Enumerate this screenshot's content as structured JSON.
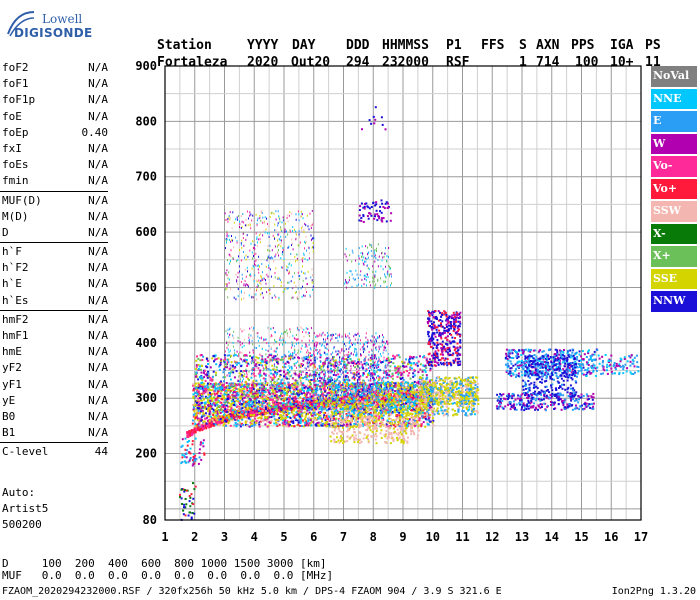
{
  "logo": {
    "line1": "Lowell",
    "line2": "DIGISONDE"
  },
  "header": {
    "labels": [
      "Station",
      "YYYY",
      "DAY",
      "DDD",
      "HHMMSS",
      "P1",
      "FFS",
      "S",
      "AXN",
      "PPS",
      "IGA",
      "PS"
    ],
    "values": [
      "Fortaleza",
      "2020",
      "Out20",
      "294",
      "232000",
      "RSF",
      "",
      "1",
      "714",
      "100",
      "10+",
      "11"
    ]
  },
  "params": [
    [
      {
        "k": "foF2",
        "v": "N/A"
      },
      {
        "k": "foF1",
        "v": "N/A"
      },
      {
        "k": "foF1p",
        "v": "N/A"
      },
      {
        "k": "foE",
        "v": "N/A"
      },
      {
        "k": "foEp",
        "v": "0.40"
      },
      {
        "k": "fxI",
        "v": "N/A"
      },
      {
        "k": "foEs",
        "v": "N/A"
      },
      {
        "k": "fmin",
        "v": "N/A"
      }
    ],
    [
      {
        "k": "MUF(D)",
        "v": "N/A"
      },
      {
        "k": "M(D)",
        "v": "N/A"
      },
      {
        "k": "D",
        "v": "N/A"
      }
    ],
    [
      {
        "k": "h`F",
        "v": "N/A"
      },
      {
        "k": "h`F2",
        "v": "N/A"
      },
      {
        "k": "h`E",
        "v": "N/A"
      },
      {
        "k": "h`Es",
        "v": "N/A"
      }
    ],
    [
      {
        "k": "hmF2",
        "v": "N/A"
      },
      {
        "k": "hmF1",
        "v": "N/A"
      },
      {
        "k": "hmE",
        "v": "N/A"
      },
      {
        "k": "yF2",
        "v": "N/A"
      },
      {
        "k": "yF1",
        "v": "N/A"
      },
      {
        "k": "yE",
        "v": "N/A"
      },
      {
        "k": "B0",
        "v": "N/A"
      },
      {
        "k": "B1",
        "v": "N/A"
      }
    ],
    [
      {
        "k": "C-level",
        "v": "44"
      }
    ]
  ],
  "autoscaling": [
    "Auto:",
    "Artist5",
    "500200"
  ],
  "legend": [
    {
      "label": "NoVal",
      "color": "#808080"
    },
    {
      "label": "NNE",
      "color": "#00c8ff"
    },
    {
      "label": "E",
      "color": "#2a9df4"
    },
    {
      "label": "W",
      "color": "#b000b0"
    },
    {
      "label": "Vo-",
      "color": "#ff2a9a"
    },
    {
      "label": "Vo+",
      "color": "#ff1a3c"
    },
    {
      "label": "SSW",
      "color": "#f4b6b0"
    },
    {
      "label": "X-",
      "color": "#087a08"
    },
    {
      "label": "X+",
      "color": "#6cc05a"
    },
    {
      "label": "SSE",
      "color": "#d4d400"
    },
    {
      "label": "NNW",
      "color": "#1a10d8"
    }
  ],
  "plot": {
    "y_ticks": [
      "900",
      "800",
      "700",
      "600",
      "500",
      "400",
      "300",
      "200",
      "80"
    ],
    "x_ticks": [
      "1",
      "2",
      "3",
      "4",
      "5",
      "6",
      "7",
      "8",
      "9",
      "10",
      "11",
      "12",
      "13",
      "14",
      "15",
      "16",
      "17"
    ]
  },
  "bottom_table": {
    "row1": "D     100  200  400  600  800 1000 1500 3000 [km]",
    "row2": "MUF   0.0  0.0  0.0  0.0  0.0  0.0  0.0  0.0 [MHz]"
  },
  "footer": {
    "left": "FZAOM_2020294232000.RSF / 320fx256h 50 kHz 5.0 km / DPS-4 FZAOM 904 / 3.9 S 321.6 E",
    "right": "Ion2Png 1.3.20"
  }
}
